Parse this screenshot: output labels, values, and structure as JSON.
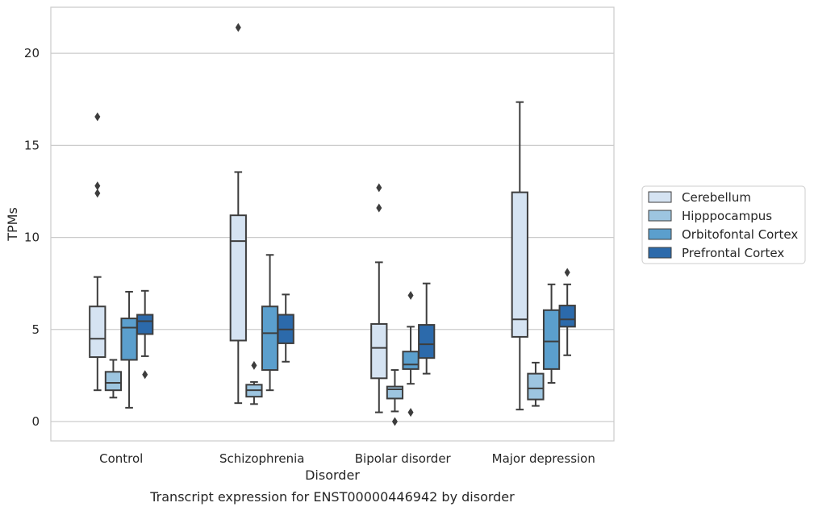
{
  "chart_data": {
    "type": "box",
    "xlabel": "Disorder",
    "ylabel": "TPMs",
    "caption": "Transcript expression for ENST00000446942 by disorder",
    "categories": [
      "Control",
      "Schizophrenia",
      "Bipolar disorder",
      "Major depression"
    ],
    "yticks": [
      0,
      5,
      10,
      15,
      20
    ],
    "ylim": [
      -1.05,
      22.5
    ],
    "grid": "horizontal",
    "legend_position": "right",
    "series": [
      {
        "name": "Cerebellum",
        "color": "#d5e3f2",
        "boxes": [
          {
            "whislo": 1.7,
            "q1": 3.5,
            "med": 4.5,
            "q3": 6.25,
            "whishi": 7.85,
            "fliers": [
              12.4,
              12.8,
              16.55
            ]
          },
          {
            "whislo": 1.0,
            "q1": 4.4,
            "med": 9.8,
            "q3": 11.2,
            "whishi": 13.55,
            "fliers": [
              21.4
            ]
          },
          {
            "whislo": 0.5,
            "q1": 2.35,
            "med": 4.0,
            "q3": 5.3,
            "whishi": 8.65,
            "fliers": [
              11.6,
              12.7
            ]
          },
          {
            "whislo": 0.65,
            "q1": 4.6,
            "med": 5.55,
            "q3": 12.45,
            "whishi": 17.35,
            "fliers": []
          }
        ]
      },
      {
        "name": "Hipppocampus",
        "color": "#9dc5e0",
        "boxes": [
          {
            "whislo": 1.3,
            "q1": 1.7,
            "med": 2.1,
            "q3": 2.7,
            "whishi": 3.35,
            "fliers": []
          },
          {
            "whislo": 0.95,
            "q1": 1.35,
            "med": 1.7,
            "q3": 2.0,
            "whishi": 2.15,
            "fliers": [
              3.05
            ]
          },
          {
            "whislo": 0.55,
            "q1": 1.25,
            "med": 1.75,
            "q3": 1.9,
            "whishi": 2.8,
            "fliers": [
              0.0
            ]
          },
          {
            "whislo": 0.85,
            "q1": 1.2,
            "med": 1.8,
            "q3": 2.6,
            "whishi": 3.2,
            "fliers": []
          }
        ]
      },
      {
        "name": "Orbitofontal Cortex",
        "color": "#5b9fcd",
        "boxes": [
          {
            "whislo": 0.75,
            "q1": 3.35,
            "med": 5.1,
            "q3": 5.6,
            "whishi": 7.05,
            "fliers": []
          },
          {
            "whislo": 1.7,
            "q1": 2.8,
            "med": 4.8,
            "q3": 6.25,
            "whishi": 9.05,
            "fliers": []
          },
          {
            "whislo": 2.05,
            "q1": 2.85,
            "med": 3.1,
            "q3": 3.8,
            "whishi": 5.15,
            "fliers": [
              0.5,
              6.85
            ]
          },
          {
            "whislo": 2.1,
            "q1": 2.85,
            "med": 4.35,
            "q3": 6.05,
            "whishi": 7.45,
            "fliers": []
          }
        ]
      },
      {
        "name": "Prefrontal Cortex",
        "color": "#2c6aab",
        "boxes": [
          {
            "whislo": 3.55,
            "q1": 4.75,
            "med": 5.45,
            "q3": 5.8,
            "whishi": 7.1,
            "fliers": [
              2.55
            ]
          },
          {
            "whislo": 3.25,
            "q1": 4.25,
            "med": 5.0,
            "q3": 5.8,
            "whishi": 6.9,
            "fliers": []
          },
          {
            "whislo": 2.6,
            "q1": 3.45,
            "med": 4.2,
            "q3": 5.25,
            "whishi": 7.5,
            "fliers": []
          },
          {
            "whislo": 3.6,
            "q1": 5.15,
            "med": 5.55,
            "q3": 6.3,
            "whishi": 7.45,
            "fliers": [
              8.1
            ]
          }
        ]
      }
    ]
  }
}
